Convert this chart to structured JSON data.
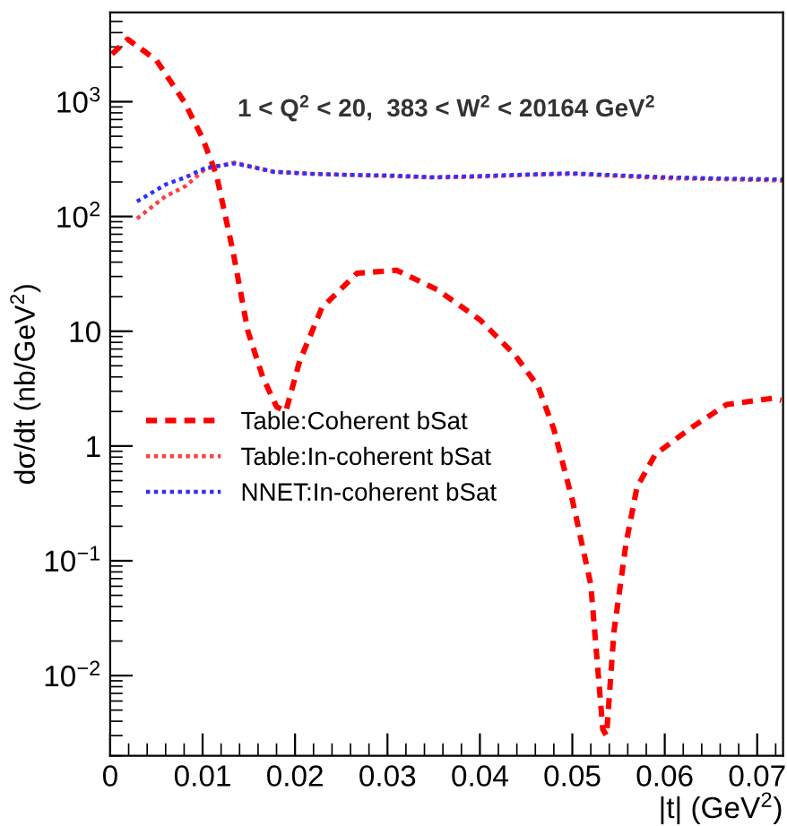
{
  "chart_data": {
    "type": "line",
    "subtitle": "1 < Q$^{2}$ < 20,  383 < W$^{2}$ < 20164 GeV$^{2}$",
    "xlabel": "|t| (GeV$^{2}$)",
    "ylabel": "dσ/dt (nb/GeV$^{2}$)",
    "log": "y",
    "xlim": [
      0,
      0.0728
    ],
    "ylim": [
      0.002,
      6000
    ],
    "xticks": [
      0,
      0.01,
      0.02,
      0.03,
      0.04,
      0.05,
      0.06,
      0.07
    ],
    "yticks": [
      {
        "value": 0.01,
        "label": "10$^{−2}$"
      },
      {
        "value": 0.1,
        "label": "10$^{−1}$"
      },
      1,
      10,
      {
        "value": 100,
        "label": "10$^{2}$"
      },
      {
        "value": 1000,
        "label": "10$^{3}$"
      }
    ],
    "grid": false,
    "legend": "left",
    "marker": "none",
    "series": [
      {
        "name": "Table:Coherent bSat",
        "color": "#ff0000",
        "line_style": "dashed",
        "x": [
          0.0002,
          0.0019,
          0.005,
          0.008,
          0.01,
          0.0115,
          0.0133,
          0.0149,
          0.0165,
          0.018,
          0.019,
          0.0205,
          0.0229,
          0.0267,
          0.031,
          0.0354,
          0.04,
          0.0438,
          0.0463,
          0.048,
          0.05,
          0.052,
          0.0533,
          0.0537,
          0.0545,
          0.0558,
          0.057,
          0.059,
          0.0629,
          0.0667,
          0.0716,
          0.0726
        ],
        "values": [
          2600,
          3500,
          2300,
          1000,
          480,
          230,
          49,
          10,
          4.0,
          2.2,
          2.0,
          5.5,
          16,
          32,
          34,
          23,
          12.6,
          6.2,
          3.3,
          1.4,
          0.34,
          0.062,
          0.0034,
          0.003,
          0.024,
          0.14,
          0.44,
          0.85,
          1.45,
          2.3,
          2.6,
          2.5
        ]
      },
      {
        "name": "Table:In-coherent bSat",
        "color": "#ff4040",
        "line_style": "dotted",
        "x": [
          0.0029,
          0.006,
          0.0082,
          0.0103,
          0.0135,
          0.0177,
          0.022,
          0.026,
          0.03,
          0.035,
          0.04,
          0.045,
          0.05,
          0.055,
          0.06,
          0.065,
          0.07,
          0.0728
        ],
        "values": [
          96,
          150,
          185,
          260,
          295,
          245,
          235,
          230,
          225,
          218,
          222,
          230,
          235,
          225,
          215,
          212,
          208,
          205
        ]
      },
      {
        "name": "NNET:In-coherent bSat",
        "color": "#3030ff",
        "line_style": "dotted",
        "x": [
          0.0029,
          0.006,
          0.0082,
          0.0103,
          0.0135,
          0.0177,
          0.022,
          0.026,
          0.03,
          0.035,
          0.04,
          0.045,
          0.05,
          0.055,
          0.06,
          0.065,
          0.07,
          0.0728
        ],
        "values": [
          135,
          190,
          220,
          265,
          290,
          245,
          235,
          230,
          228,
          220,
          225,
          232,
          238,
          228,
          220,
          215,
          212,
          210
        ]
      }
    ]
  }
}
